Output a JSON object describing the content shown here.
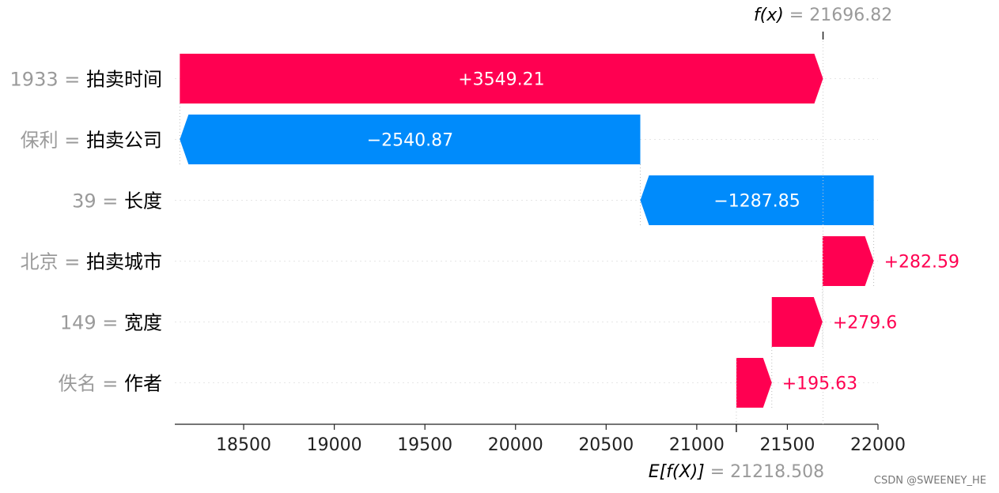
{
  "chart_data": {
    "type": "waterfall",
    "features": [
      {
        "value": "1933",
        "name": "拍卖时间",
        "contribution": 3549.21,
        "label": "+3549.21"
      },
      {
        "value": "保利",
        "name": "拍卖公司",
        "contribution": -2540.87,
        "label": "−2540.87"
      },
      {
        "value": "39",
        "name": "长度",
        "contribution": -1287.85,
        "label": "−1287.85"
      },
      {
        "value": "北京",
        "name": "拍卖城市",
        "contribution": 282.59,
        "label": "+282.59"
      },
      {
        "value": "149",
        "name": "宽度",
        "contribution": 279.6,
        "label": "+279.6"
      },
      {
        "value": "佚名",
        "name": "作者",
        "contribution": 195.63,
        "label": "+195.63"
      }
    ],
    "fx": {
      "label": "f(x)",
      "value": "21696.82",
      "number": 21696.82
    },
    "expected": {
      "label": "E[f(X)]",
      "value": "21218.508",
      "number": 21218.508
    },
    "xticks": [
      18500,
      19000,
      19500,
      20000,
      20500,
      21000,
      21500,
      22000
    ],
    "xlim": [
      18120,
      22000
    ],
    "colors": {
      "positive": "#ff0051",
      "negative": "#008bfb",
      "value_text": "#9a9a9a",
      "axis": "#222222"
    }
  },
  "watermark": "CSDN @SWEENEY_HE"
}
